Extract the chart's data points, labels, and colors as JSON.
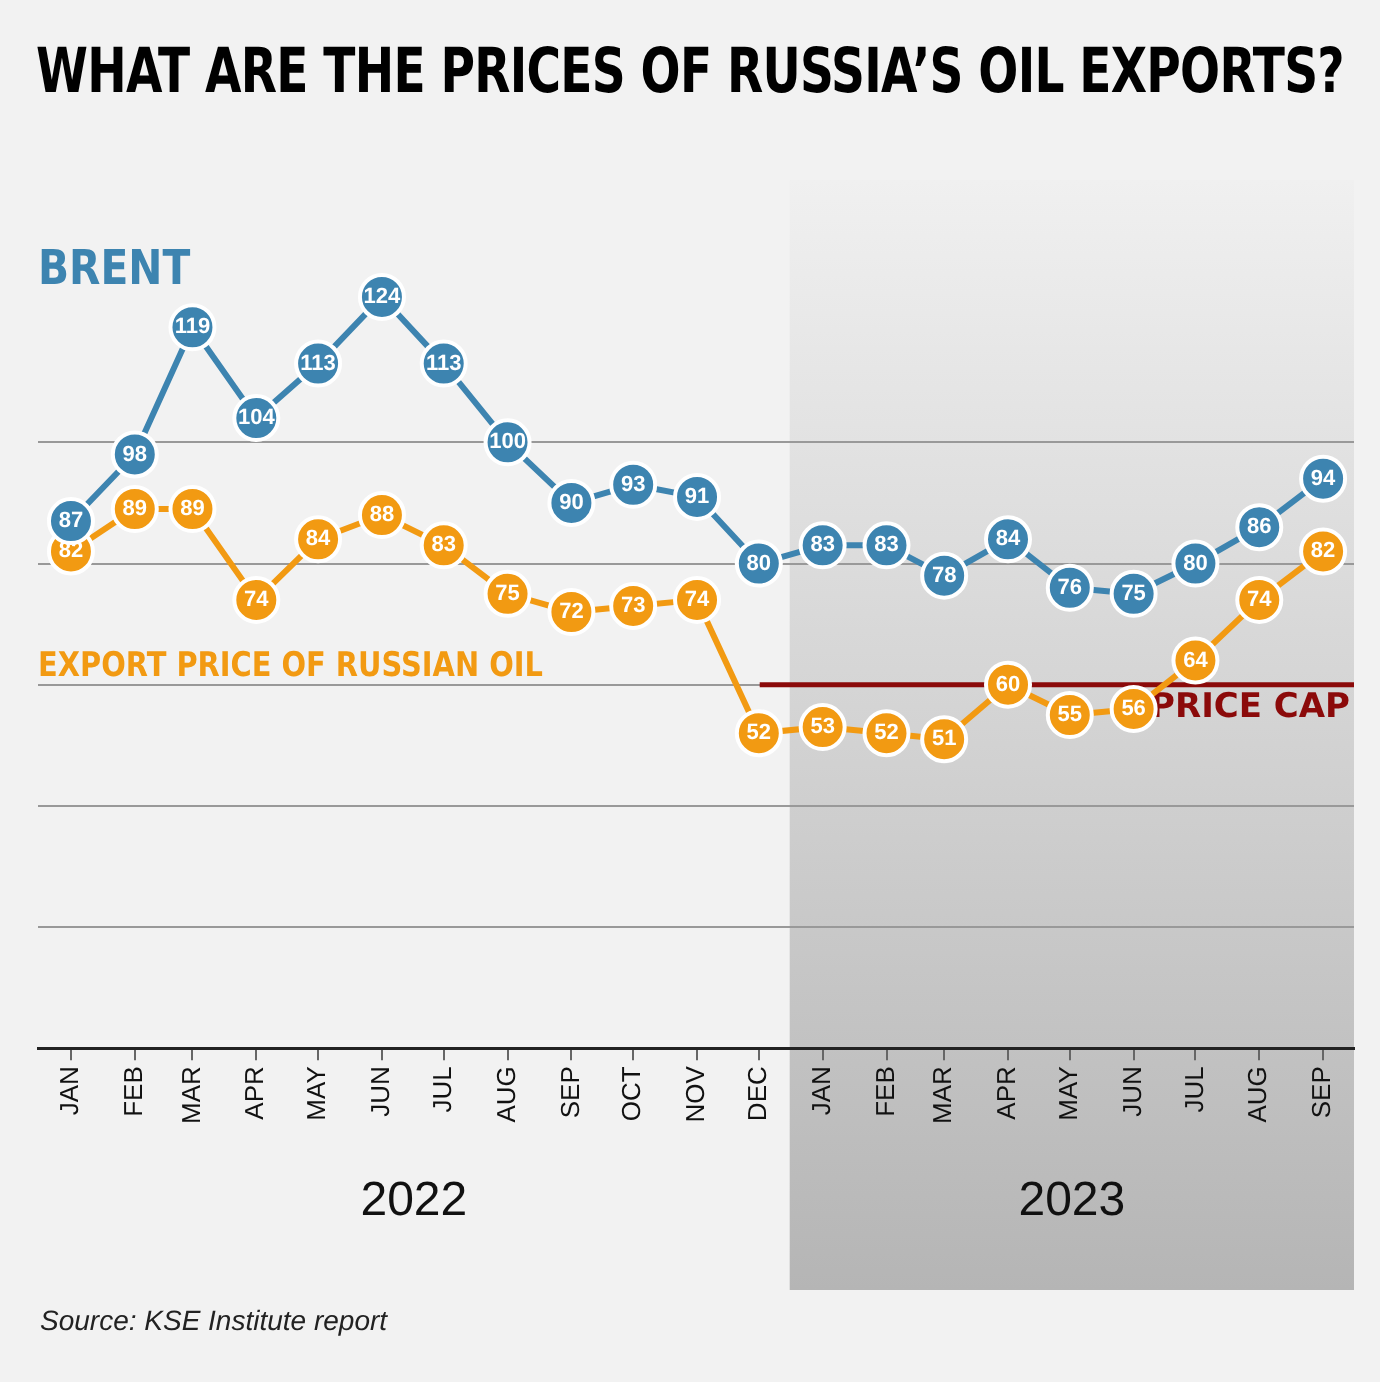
{
  "chart_data": {
    "type": "line",
    "title": "WHAT ARE THE PRICES OF RUSSIA’S OIL EXPORTS?",
    "x": [
      "2022-01",
      "2022-02",
      "2022-03",
      "2022-04",
      "2022-05",
      "2022-06",
      "2022-07",
      "2022-08",
      "2022-09",
      "2022-10",
      "2022-11",
      "2022-12",
      "2023-01",
      "2023-02",
      "2023-03",
      "2023-04",
      "2023-05",
      "2023-06",
      "2023-07",
      "2023-08",
      "2023-09"
    ],
    "xlim": [
      "2021-12-16",
      "2023-09-16"
    ],
    "xticks": [
      {
        "value": "2022-01",
        "label": "JAN"
      },
      {
        "value": "2022-02",
        "label": "FEB"
      },
      {
        "value": "2022-03",
        "label": "MAR"
      },
      {
        "value": "2022-04",
        "label": "APR"
      },
      {
        "value": "2022-05",
        "label": "MAY"
      },
      {
        "value": "2022-06",
        "label": "JUN"
      },
      {
        "value": "2022-07",
        "label": "JUL"
      },
      {
        "value": "2022-08",
        "label": "AUG"
      },
      {
        "value": "2022-09",
        "label": "SEP"
      },
      {
        "value": "2022-10",
        "label": "OCT"
      },
      {
        "value": "2022-11",
        "label": "NOV"
      },
      {
        "value": "2022-12",
        "label": "DEC"
      },
      {
        "value": "2023-01",
        "label": "JAN"
      },
      {
        "value": "2023-02",
        "label": "FEB"
      },
      {
        "value": "2023-03",
        "label": "MAR"
      },
      {
        "value": "2023-04",
        "label": "APR"
      },
      {
        "value": "2023-05",
        "label": "MAY"
      },
      {
        "value": "2023-06",
        "label": "JUN"
      },
      {
        "value": "2023-07",
        "label": "JUL"
      },
      {
        "value": "2023-08",
        "label": "AUG"
      },
      {
        "value": "2023-09",
        "label": "SEP"
      }
    ],
    "series": [
      {
        "name": "BRENT",
        "color": "#3d84b0",
        "values": [
          87,
          98,
          119,
          104,
          113,
          124,
          113,
          100,
          90,
          93,
          91,
          80,
          83,
          83,
          78,
          84,
          76,
          75,
          80,
          86,
          94
        ]
      },
      {
        "name": "EXPORT PRICE OF RUSSIAN OIL",
        "color": "#f29a12",
        "values": [
          82,
          89,
          89,
          74,
          84,
          88,
          83,
          75,
          72,
          73,
          74,
          52,
          53,
          52,
          51,
          60,
          55,
          56,
          64,
          74,
          82
        ]
      }
    ],
    "yticks": [
      {
        "value": 0,
        "label": null
      },
      {
        "value": 20,
        "label": null
      },
      {
        "value": 40,
        "label": null
      },
      {
        "value": 60,
        "label": null
      },
      {
        "value": 80,
        "label": null
      },
      {
        "value": 100,
        "label": null
      }
    ],
    "tick_labels": "x",
    "grid": "y",
    "legend": false,
    "marker": "circle",
    "line_style": "solid",
    "data_labels": true,
    "ref_lines": [
      {
        "axis": "y",
        "value": 60,
        "label": "PRICE CAP",
        "color": "#8b0a0a"
      }
    ],
    "bands": [
      {
        "axis": "x",
        "from": "2022-12-16",
        "to": "2023-09-16",
        "label": "2023",
        "color": "#b5b5b5"
      }
    ],
    "annotations": [
      "2022",
      "Source: KSE Institute report"
    ]
  }
}
